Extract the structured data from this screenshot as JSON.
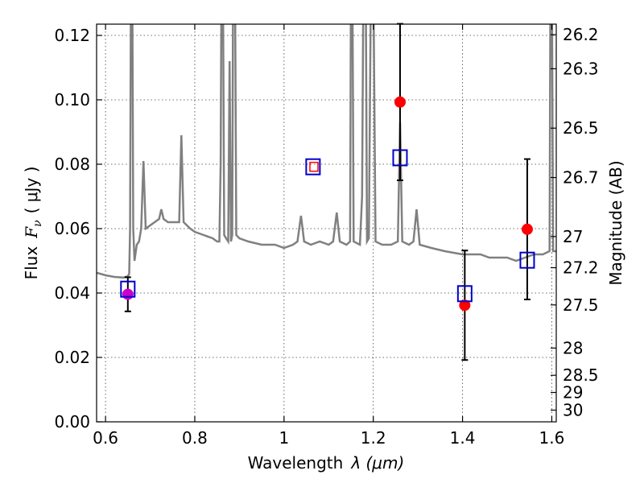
{
  "chart_data": {
    "type": "scatter",
    "xlabel_text": "Wavelength",
    "xlabel_math": "λ (μm)",
    "ylabel_text": "Flux",
    "ylabel_math": "F",
    "ylabel_sub": "ν",
    "ylabel_unit": "( μJy )",
    "ylabel_right": "Magnitude (AB)",
    "xlim": [
      0.58,
      1.61
    ],
    "ylim": [
      0.0,
      0.1235
    ],
    "grid": true,
    "x_ticks": [
      {
        "value": 0.6,
        "label": ""
      },
      {
        "value": 0.8,
        "label": "0.8"
      },
      {
        "value": 1.0,
        "label": "1"
      },
      {
        "value": 1.2,
        "label": "1.2"
      },
      {
        "value": 1.4,
        "label": "1.4"
      },
      {
        "value": 1.6,
        "label": "1.6"
      }
    ],
    "x_tick_labels_extra": [
      {
        "value": 0.6,
        "label": "0.6"
      }
    ],
    "y_ticks": [
      {
        "value": 0.0,
        "label": "0.00"
      },
      {
        "value": 0.02,
        "label": "0.02"
      },
      {
        "value": 0.04,
        "label": "0.04"
      },
      {
        "value": 0.06,
        "label": "0.06"
      },
      {
        "value": 0.08,
        "label": "0.08"
      },
      {
        "value": 0.1,
        "label": "0.10"
      },
      {
        "value": 0.12,
        "label": "0.12"
      }
    ],
    "mag_ticks": [
      {
        "mag": 26.2,
        "label": "26.2"
      },
      {
        "mag": 26.3,
        "label": "26.3"
      },
      {
        "mag": 26.5,
        "label": "26.5"
      },
      {
        "mag": 26.7,
        "label": "26.7"
      },
      {
        "mag": 27.0,
        "label": "27"
      },
      {
        "mag": 27.2,
        "label": "27.2"
      },
      {
        "mag": 27.5,
        "label": "27.5"
      },
      {
        "mag": 28.0,
        "label": "28"
      },
      {
        "mag": 28.5,
        "label": "28.5"
      },
      {
        "mag": 29.0,
        "label": "29"
      },
      {
        "mag": 30.0,
        "label": "30"
      }
    ],
    "series": [
      {
        "kind": "line",
        "color": "#808080",
        "points": [
          [
            0.58,
            0.0463
          ],
          [
            0.6,
            0.0455
          ],
          [
            0.62,
            0.045
          ],
          [
            0.64,
            0.0448
          ],
          [
            0.65,
            0.0452
          ],
          [
            0.653,
            0.046
          ],
          [
            0.655,
            0.06
          ],
          [
            0.657,
            0.14
          ],
          [
            0.66,
            0.14
          ],
          [
            0.662,
            0.06
          ],
          [
            0.665,
            0.05
          ],
          [
            0.67,
            0.055
          ],
          [
            0.675,
            0.056
          ],
          [
            0.68,
            0.06
          ],
          [
            0.685,
            0.081
          ],
          [
            0.69,
            0.06
          ],
          [
            0.7,
            0.061
          ],
          [
            0.71,
            0.062
          ],
          [
            0.72,
            0.063
          ],
          [
            0.725,
            0.066
          ],
          [
            0.73,
            0.063
          ],
          [
            0.74,
            0.062
          ],
          [
            0.75,
            0.062
          ],
          [
            0.76,
            0.062
          ],
          [
            0.765,
            0.062
          ],
          [
            0.77,
            0.089
          ],
          [
            0.775,
            0.062
          ],
          [
            0.79,
            0.06
          ],
          [
            0.8,
            0.059
          ],
          [
            0.82,
            0.058
          ],
          [
            0.84,
            0.057
          ],
          [
            0.85,
            0.056
          ],
          [
            0.855,
            0.056
          ],
          [
            0.858,
            0.08
          ],
          [
            0.86,
            0.14
          ],
          [
            0.863,
            0.14
          ],
          [
            0.866,
            0.058
          ],
          [
            0.87,
            0.057
          ],
          [
            0.875,
            0.056
          ],
          [
            0.878,
            0.112
          ],
          [
            0.881,
            0.056
          ],
          [
            0.884,
            0.058
          ],
          [
            0.886,
            0.14
          ],
          [
            0.89,
            0.14
          ],
          [
            0.893,
            0.058
          ],
          [
            0.9,
            0.057
          ],
          [
            0.92,
            0.056
          ],
          [
            0.95,
            0.055
          ],
          [
            0.98,
            0.055
          ],
          [
            1.0,
            0.054
          ],
          [
            1.02,
            0.055
          ],
          [
            1.03,
            0.056
          ],
          [
            1.038,
            0.064
          ],
          [
            1.045,
            0.056
          ],
          [
            1.06,
            0.055
          ],
          [
            1.08,
            0.056
          ],
          [
            1.1,
            0.055
          ],
          [
            1.11,
            0.056
          ],
          [
            1.118,
            0.065
          ],
          [
            1.125,
            0.056
          ],
          [
            1.14,
            0.055
          ],
          [
            1.148,
            0.056
          ],
          [
            1.15,
            0.14
          ],
          [
            1.153,
            0.14
          ],
          [
            1.156,
            0.056
          ],
          [
            1.17,
            0.055
          ],
          [
            1.175,
            0.07
          ],
          [
            1.178,
            0.14
          ],
          [
            1.183,
            0.14
          ],
          [
            1.186,
            0.056
          ],
          [
            1.19,
            0.057
          ],
          [
            1.195,
            0.14
          ],
          [
            1.2,
            0.14
          ],
          [
            1.205,
            0.056
          ],
          [
            1.22,
            0.055
          ],
          [
            1.24,
            0.055
          ],
          [
            1.255,
            0.056
          ],
          [
            1.26,
            0.093
          ],
          [
            1.265,
            0.056
          ],
          [
            1.28,
            0.055
          ],
          [
            1.29,
            0.056
          ],
          [
            1.297,
            0.066
          ],
          [
            1.304,
            0.055
          ],
          [
            1.33,
            0.054
          ],
          [
            1.36,
            0.053
          ],
          [
            1.4,
            0.052
          ],
          [
            1.44,
            0.052
          ],
          [
            1.46,
            0.051
          ],
          [
            1.48,
            0.051
          ],
          [
            1.5,
            0.051
          ],
          [
            1.52,
            0.05
          ],
          [
            1.54,
            0.051
          ],
          [
            1.56,
            0.052
          ],
          [
            1.58,
            0.052
          ],
          [
            1.595,
            0.053
          ],
          [
            1.597,
            0.14
          ],
          [
            1.6,
            0.14
          ],
          [
            1.603,
            0.053
          ],
          [
            1.61,
            0.053
          ]
        ]
      },
      {
        "kind": "markers",
        "marker": "circle",
        "color": "#ff0000",
        "points": [
          {
            "x": 1.26,
            "y": 0.0993,
            "err": 0.0243
          },
          {
            "x": 1.405,
            "y": 0.0362,
            "err": 0.017
          },
          {
            "x": 1.545,
            "y": 0.0598,
            "err": 0.0218
          }
        ]
      },
      {
        "kind": "markers",
        "marker": "circle",
        "color": "#cc00cc",
        "points": [
          {
            "x": 0.65,
            "y": 0.0396,
            "err": 0.0053
          }
        ]
      },
      {
        "kind": "markers",
        "marker": "square",
        "color": "#0000cc",
        "points": [
          {
            "x": 0.65,
            "y": 0.0412
          },
          {
            "x": 1.065,
            "y": 0.0792
          },
          {
            "x": 1.26,
            "y": 0.082
          },
          {
            "x": 1.405,
            "y": 0.0398
          },
          {
            "x": 1.545,
            "y": 0.0502
          }
        ]
      },
      {
        "kind": "markers",
        "marker": "small-square",
        "color": "#ff0000",
        "points": [
          {
            "x": 1.067,
            "y": 0.0792
          }
        ]
      }
    ]
  }
}
